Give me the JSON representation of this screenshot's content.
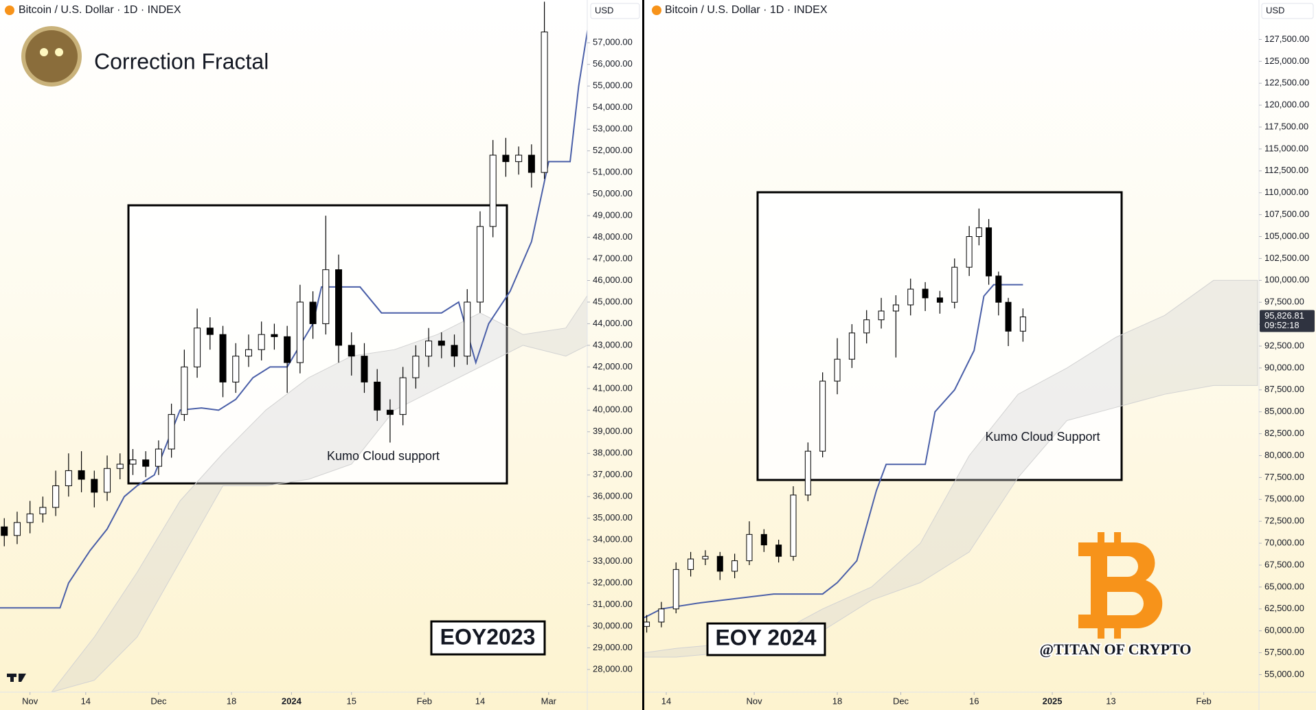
{
  "header": "Correction Fractal",
  "watermark": "@TITAN OF CRYPTO",
  "chart_data": [
    {
      "type": "candlestick",
      "title": "Bitcoin / U.S. Dollar · 1D · INDEX",
      "currency": "USD",
      "xlim": [
        -7,
        130
      ],
      "xticks": [
        {
          "value": 0,
          "label": "Nov"
        },
        {
          "value": 13,
          "label": "14"
        },
        {
          "value": 30,
          "label": "Dec"
        },
        {
          "value": 47,
          "label": "18"
        },
        {
          "value": 61,
          "label": "2024"
        },
        {
          "value": 75,
          "label": "15"
        },
        {
          "value": 92,
          "label": "Feb"
        },
        {
          "value": 105,
          "label": "14"
        },
        {
          "value": 121,
          "label": "Mar"
        }
      ],
      "ylim": [
        26950,
        58980
      ],
      "yticks": [
        {
          "value": 28000,
          "label": "28,000.00"
        },
        {
          "value": 29000,
          "label": "29,000.00"
        },
        {
          "value": 30000,
          "label": "30,000.00"
        },
        {
          "value": 31000,
          "label": "31,000.00"
        },
        {
          "value": 32000,
          "label": "32,000.00"
        },
        {
          "value": 33000,
          "label": "33,000.00"
        },
        {
          "value": 34000,
          "label": "34,000.00"
        },
        {
          "value": 35000,
          "label": "35,000.00"
        },
        {
          "value": 36000,
          "label": "36,000.00"
        },
        {
          "value": 37000,
          "label": "37,000.00"
        },
        {
          "value": 38000,
          "label": "38,000.00"
        },
        {
          "value": 39000,
          "label": "39,000.00"
        },
        {
          "value": 40000,
          "label": "40,000.00"
        },
        {
          "value": 41000,
          "label": "41,000.00"
        },
        {
          "value": 42000,
          "label": "42,000.00"
        },
        {
          "value": 43000,
          "label": "43,000.00"
        },
        {
          "value": 44000,
          "label": "44,000.00"
        },
        {
          "value": 45000,
          "label": "45,000.00"
        },
        {
          "value": 46000,
          "label": "46,000.00"
        },
        {
          "value": 47000,
          "label": "47,000.00"
        },
        {
          "value": 48000,
          "label": "48,000.00"
        },
        {
          "value": 49000,
          "label": "49,000.00"
        },
        {
          "value": 50000,
          "label": "50,000.00"
        },
        {
          "value": 51000,
          "label": "51,000.00"
        },
        {
          "value": 52000,
          "label": "52,000.00"
        },
        {
          "value": 53000,
          "label": "53,000.00"
        },
        {
          "value": 54000,
          "label": "54,000.00"
        },
        {
          "value": 55000,
          "label": "55,000.00"
        },
        {
          "value": 56000,
          "label": "56,000.00"
        },
        {
          "value": 57000,
          "label": "57,000.00"
        }
      ],
      "up_color": "#ffffff",
      "down_color": "#000000",
      "candles": {
        "x": [
          -6,
          -3,
          0,
          3,
          6,
          9,
          12,
          15,
          18,
          21,
          24,
          27,
          30,
          33,
          36,
          39,
          42,
          45,
          48,
          51,
          54,
          57,
          60,
          63,
          66,
          69,
          72,
          75,
          78,
          81,
          84,
          87,
          90,
          93,
          96,
          99,
          102,
          105,
          108,
          111,
          114,
          117,
          120
        ],
        "open": [
          34600,
          34200,
          34800,
          35200,
          35500,
          36500,
          37200,
          36800,
          36200,
          37300,
          37500,
          37700,
          37400,
          38200,
          39800,
          42000,
          43800,
          43500,
          41300,
          42500,
          42800,
          43500,
          43400,
          42200,
          45000,
          44000,
          46500,
          43000,
          42500,
          41300,
          40000,
          39800,
          41500,
          42500,
          43200,
          43000,
          42500,
          45000,
          48500,
          51800,
          51500,
          51800,
          51000
        ],
        "high": [
          35000,
          35300,
          35800,
          36000,
          37200,
          38000,
          38100,
          37200,
          37900,
          38000,
          38200,
          38100,
          38600,
          40300,
          42800,
          44700,
          44300,
          43900,
          43100,
          43500,
          44100,
          44000,
          43900,
          45800,
          45500,
          49000,
          47200,
          43600,
          43100,
          41900,
          40500,
          42000,
          43000,
          43800,
          43600,
          43500,
          45600,
          49200,
          52500,
          52600,
          52200,
          52300,
          58900
        ],
        "low": [
          33700,
          33800,
          34300,
          34800,
          35100,
          36000,
          36200,
          35500,
          35800,
          36800,
          37000,
          36900,
          37000,
          37800,
          39500,
          41500,
          42800,
          40600,
          40800,
          42000,
          42300,
          42800,
          40800,
          41700,
          43300,
          43500,
          42200,
          41600,
          40800,
          39500,
          38500,
          39300,
          41000,
          42000,
          42400,
          42000,
          42100,
          44500,
          48000,
          50800,
          50900,
          50300,
          50700
        ],
        "close": [
          34200,
          34800,
          35200,
          35500,
          36500,
          37200,
          36800,
          36200,
          37300,
          37500,
          37700,
          37400,
          38200,
          39800,
          42000,
          43800,
          43500,
          41300,
          42500,
          42800,
          43500,
          43400,
          42200,
          45000,
          44000,
          46500,
          43000,
          42500,
          41300,
          40000,
          39800,
          41500,
          42500,
          43200,
          43000,
          42500,
          45000,
          48500,
          51800,
          51500,
          51800,
          51000,
          57500
        ]
      },
      "base_line": {
        "color": "#4a5fa8",
        "x": [
          -7,
          7,
          9,
          14,
          18,
          22,
          25,
          29,
          32,
          35,
          40,
          44,
          48,
          52,
          56,
          60,
          66,
          68,
          77,
          82,
          92,
          96,
          100,
          104,
          107,
          112,
          117,
          121,
          126,
          128,
          132
        ],
        "values": [
          30850,
          30850,
          32000,
          33500,
          34500,
          36000,
          36500,
          37000,
          38500,
          40000,
          40100,
          40000,
          40500,
          41500,
          42000,
          42000,
          44000,
          45700,
          45700,
          44500,
          44500,
          44500,
          45000,
          42200,
          44000,
          45500,
          47800,
          51500,
          51500,
          55000,
          60000
        ]
      },
      "cloud": {
        "color": "#d2d2d2",
        "x": [
          -7,
          5,
          15,
          25,
          35,
          45,
          55,
          65,
          75,
          85,
          95,
          105,
          115,
          125,
          130
        ],
        "upper": [
          26950,
          26950,
          29500,
          32500,
          35800,
          38000,
          40000,
          41500,
          42500,
          42800,
          43500,
          44500,
          43500,
          43800,
          45300
        ],
        "lower": [
          26950,
          26950,
          27500,
          29500,
          33000,
          36500,
          36500,
          36800,
          37500,
          40000,
          41000,
          42000,
          43000,
          42500,
          43000
        ]
      },
      "annotations": [
        "Kumo Cloud support",
        "EOY2023"
      ]
    },
    {
      "type": "candlestick",
      "title": "Bitcoin / U.S. Dollar · 1D · INDEX",
      "currency": "USD",
      "xlim": [
        8.5,
        134.3
      ],
      "xticks": [
        {
          "value": 13,
          "label": "14"
        },
        {
          "value": 31,
          "label": "Nov"
        },
        {
          "value": 48,
          "label": "18"
        },
        {
          "value": 61,
          "label": "Dec"
        },
        {
          "value": 76,
          "label": "16"
        },
        {
          "value": 92,
          "label": "2025"
        },
        {
          "value": 104,
          "label": "13"
        },
        {
          "value": 123,
          "label": "Feb"
        }
      ],
      "ylim": [
        53000,
        132000
      ],
      "yticks": [
        {
          "value": 55000,
          "label": "55,000.00"
        },
        {
          "value": 57500,
          "label": "57,500.00"
        },
        {
          "value": 60000,
          "label": "60,000.00"
        },
        {
          "value": 62500,
          "label": "62,500.00"
        },
        {
          "value": 65000,
          "label": "65,000.00"
        },
        {
          "value": 67500,
          "label": "67,500.00"
        },
        {
          "value": 70000,
          "label": "70,000.00"
        },
        {
          "value": 72500,
          "label": "72,500.00"
        },
        {
          "value": 75000,
          "label": "75,000.00"
        },
        {
          "value": 77500,
          "label": "77,500.00"
        },
        {
          "value": 80000,
          "label": "80,000.00"
        },
        {
          "value": 82500,
          "label": "82,500.00"
        },
        {
          "value": 85000,
          "label": "85,000.00"
        },
        {
          "value": 87500,
          "label": "87,500.00"
        },
        {
          "value": 90000,
          "label": "90,000.00"
        },
        {
          "value": 92500,
          "label": "92,500.00"
        },
        {
          "value": 95000,
          "label": "95,000.00"
        },
        {
          "value": 97500,
          "label": "97,500.00"
        },
        {
          "value": 100000,
          "label": "100,000.00"
        },
        {
          "value": 102500,
          "label": "102,500.00"
        },
        {
          "value": 105000,
          "label": "105,000.00"
        },
        {
          "value": 107500,
          "label": "107,500.00"
        },
        {
          "value": 110000,
          "label": "110,000.00"
        },
        {
          "value": 112500,
          "label": "112,500.00"
        },
        {
          "value": 115000,
          "label": "115,000.00"
        },
        {
          "value": 117500,
          "label": "117,500.00"
        },
        {
          "value": 120000,
          "label": "120,000.00"
        },
        {
          "value": 122500,
          "label": "122,500.00"
        },
        {
          "value": 125000,
          "label": "125,000.00"
        },
        {
          "value": 127500,
          "label": "127,500.00"
        }
      ],
      "up_color": "#ffffff",
      "down_color": "#000000",
      "candles": {
        "x": [
          9,
          12,
          15,
          18,
          21,
          24,
          27,
          30,
          33,
          36,
          39,
          42,
          45,
          48,
          51,
          54,
          57,
          60,
          63,
          66,
          69,
          72,
          75,
          77,
          79,
          81,
          83,
          86
        ],
        "open": [
          60500,
          61000,
          62500,
          67000,
          68200,
          68500,
          66800,
          68000,
          71000,
          69800,
          68500,
          75500,
          80500,
          88500,
          91000,
          94000,
          95500,
          96500,
          97200,
          99000,
          98000,
          97500,
          101500,
          105000,
          106000,
          100500,
          97500,
          94200
        ],
        "high": [
          61800,
          63300,
          67800,
          69000,
          69200,
          69000,
          68800,
          72500,
          71600,
          70400,
          76500,
          81500,
          89500,
          93400,
          95000,
          96600,
          98000,
          98300,
          100200,
          99800,
          98800,
          102500,
          106200,
          108200,
          107000,
          101000,
          98000,
          96800
        ],
        "low": [
          59800,
          60400,
          62000,
          66200,
          67500,
          65800,
          66000,
          67500,
          69000,
          67800,
          68000,
          74800,
          79800,
          87000,
          90000,
          92800,
          94500,
          91200,
          96000,
          96500,
          96200,
          96800,
          100500,
          104000,
          99500,
          96000,
          92500,
          93000
        ],
        "close": [
          61000,
          62500,
          67000,
          68200,
          68500,
          66800,
          68000,
          71000,
          69800,
          68500,
          75500,
          80500,
          88500,
          91000,
          94000,
          95500,
          96500,
          97200,
          99000,
          98000,
          97500,
          101500,
          105000,
          106000,
          100500,
          97500,
          94200,
          95826.81
        ]
      },
      "base_line": {
        "color": "#4a5fa8",
        "x": [
          8.5,
          12,
          20,
          35,
          45,
          48,
          52,
          56,
          58,
          66,
          68,
          72,
          76,
          78,
          80,
          86
        ],
        "values": [
          61500,
          62500,
          63200,
          64200,
          64200,
          65500,
          68000,
          76000,
          79000,
          79000,
          85000,
          87500,
          92000,
          98200,
          99500,
          99500
        ]
      },
      "cloud": {
        "color": "#d2d2d2",
        "x": [
          8.5,
          15,
          25,
          35,
          45,
          55,
          65,
          75,
          85,
          95,
          105,
          115,
          125,
          134
        ],
        "upper": [
          57500,
          58000,
          58500,
          59500,
          62500,
          65000,
          70000,
          80000,
          87000,
          90000,
          93500,
          96000,
          100000,
          100000
        ],
        "lower": [
          57000,
          57000,
          57500,
          58500,
          60000,
          63500,
          65500,
          69000,
          77500,
          84000,
          85500,
          87000,
          88000,
          88000
        ]
      },
      "last_price": {
        "value": 95826.81,
        "label": "95,826.81"
      },
      "countdown": "09:52:18",
      "annotations": [
        "Kumo Cloud Support",
        "EOY 2024"
      ]
    }
  ]
}
